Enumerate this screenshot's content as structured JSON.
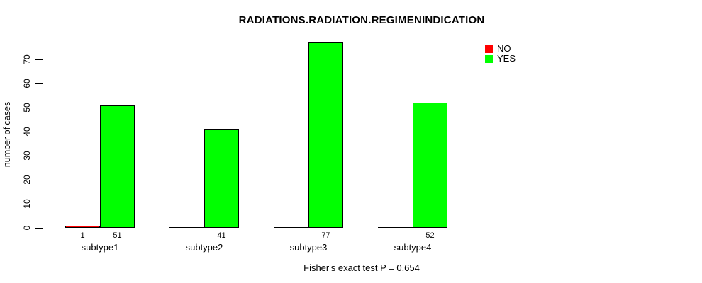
{
  "title": "RADIATIONS.RADIATION.REGIMENINDICATION",
  "footnote": "Fisher's exact test P = 0.654",
  "legend": {
    "items": [
      {
        "label": "NO",
        "color": "#FF0000"
      },
      {
        "label": "YES",
        "color": "#00FF00"
      }
    ]
  },
  "chart_data": {
    "type": "bar",
    "title": "RADIATIONS.RADIATION.REGIMENINDICATION",
    "xlabel": "",
    "ylabel": "number of cases",
    "categories": [
      "subtype1",
      "subtype2",
      "subtype3",
      "subtype4"
    ],
    "series": [
      {
        "name": "NO",
        "color": "#FF0000",
        "values": [
          1,
          0,
          0,
          0
        ]
      },
      {
        "name": "YES",
        "color": "#00FF00",
        "values": [
          51,
          41,
          77,
          52
        ]
      }
    ],
    "value_labels": [
      [
        "1",
        "51"
      ],
      [
        "",
        "41"
      ],
      [
        "",
        "77"
      ],
      [
        "",
        "52"
      ]
    ],
    "yticks": [
      0,
      10,
      20,
      30,
      40,
      50,
      60,
      70
    ],
    "ylim": [
      0,
      77
    ],
    "grid": false,
    "legend_position": "top-right",
    "annotation": "Fisher's exact test P = 0.654"
  }
}
